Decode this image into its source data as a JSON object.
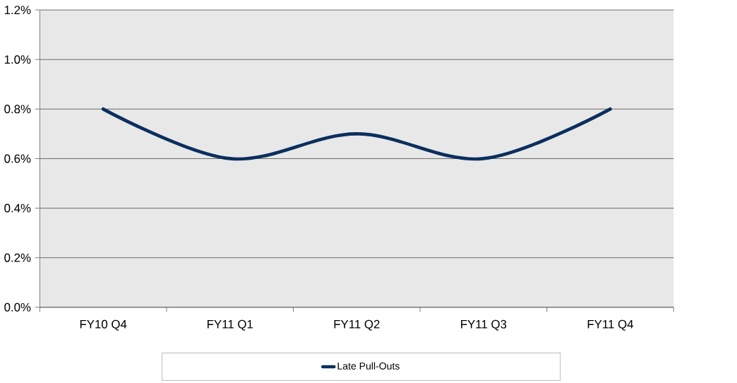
{
  "chart_data": {
    "type": "line",
    "categories": [
      "FY10 Q4",
      "FY11 Q1",
      "FY11 Q2",
      "FY11 Q3",
      "FY11 Q4"
    ],
    "series": [
      {
        "name": "Late Pull-Outs",
        "color": "#0b2f5e",
        "values": [
          0.8,
          0.6,
          0.7,
          0.6,
          0.8
        ]
      }
    ],
    "ylim": [
      0,
      1.2
    ],
    "yticks": [
      {
        "value": 0,
        "label": "0.0%"
      },
      {
        "value": 0.2,
        "label": "0.2%"
      },
      {
        "value": 0.4,
        "label": "0.4%"
      },
      {
        "value": 0.6,
        "label": "0.6%"
      },
      {
        "value": 0.8,
        "label": "0.8%"
      },
      {
        "value": 1.0,
        "label": "1.0%"
      },
      {
        "value": 1.2,
        "label": "1.2%"
      }
    ],
    "grid": "y",
    "legend": "bottom",
    "line_style": "solid"
  }
}
